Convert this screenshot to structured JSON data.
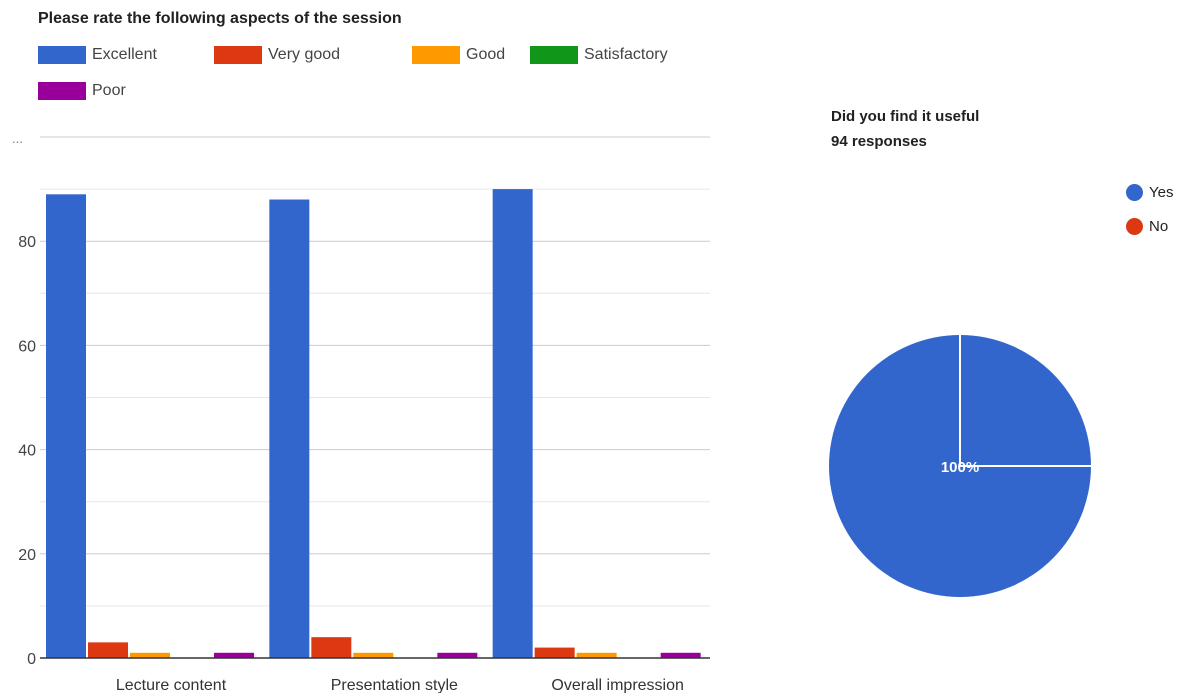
{
  "chart_data": [
    {
      "type": "bar",
      "title": "Please rate the following aspects of the session",
      "categories": [
        "Lecture content",
        "Presentation style",
        "Overall impression"
      ],
      "series": [
        {
          "name": "Excellent",
          "color": "#3366cc",
          "values": [
            89,
            88,
            90
          ]
        },
        {
          "name": "Very good",
          "color": "#dc3912",
          "values": [
            3,
            4,
            2
          ]
        },
        {
          "name": "Good",
          "color": "#ff9900",
          "values": [
            1,
            1,
            1
          ]
        },
        {
          "name": "Satisfactory",
          "color": "#109618",
          "values": [
            0,
            0,
            0
          ]
        },
        {
          "name": "Poor",
          "color": "#990099",
          "values": [
            1,
            1,
            1
          ]
        }
      ],
      "y_ticks": [
        0,
        20,
        40,
        60,
        80
      ],
      "ylim": [
        0,
        100
      ],
      "grid": true,
      "legend_position": "top",
      "overflow_marker": "..."
    },
    {
      "type": "pie",
      "title": "Did you find it useful",
      "subtitle": "94 responses",
      "slices": [
        {
          "label": "Yes",
          "color": "#3366cc",
          "value": 100
        },
        {
          "label": "No",
          "color": "#dc3912",
          "value": 0
        }
      ],
      "slice_label": "100%",
      "legend_position": "right"
    }
  ]
}
